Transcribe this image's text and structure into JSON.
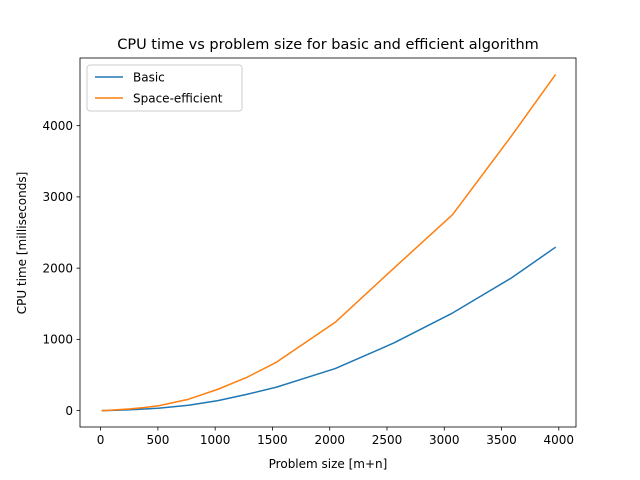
{
  "chart_data": {
    "type": "line",
    "title": "CPU time vs problem size for basic and efficient algorithm",
    "xlabel": "Problem size [m+n]",
    "ylabel": "CPU time [milliseconds]",
    "xlim": [
      -180,
      4150
    ],
    "ylim": [
      -230,
      4950
    ],
    "xticks": [
      0,
      500,
      1000,
      1500,
      2000,
      2500,
      3000,
      3500,
      4000
    ],
    "yticks": [
      0,
      1000,
      2000,
      3000,
      4000
    ],
    "grid": false,
    "legend": "upper-left",
    "series": [
      {
        "name": "Basic",
        "color": "#1f77b4",
        "x": [
          16,
          64,
          128,
          256,
          384,
          512,
          768,
          1024,
          1280,
          1536,
          2048,
          2560,
          3072,
          3584,
          3968
        ],
        "y": [
          0,
          2,
          5,
          12,
          22,
          35,
          75,
          140,
          230,
          330,
          590,
          950,
          1370,
          1860,
          2290
        ]
      },
      {
        "name": "Space-efficient",
        "color": "#ff7f0e",
        "x": [
          16,
          64,
          128,
          256,
          384,
          512,
          768,
          1024,
          1280,
          1536,
          2048,
          2560,
          3072,
          3584,
          3968
        ],
        "y": [
          0,
          4,
          10,
          24,
          44,
          70,
          160,
          300,
          470,
          680,
          1240,
          2000,
          2750,
          3850,
          4710
        ]
      }
    ]
  }
}
